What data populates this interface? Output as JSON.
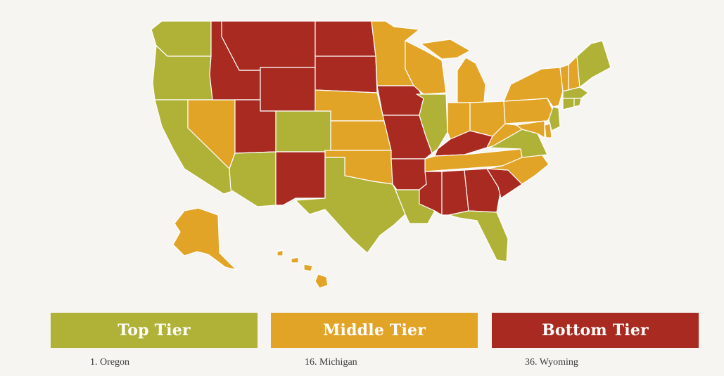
{
  "colors": {
    "top": "#afb236",
    "middle": "#e2a427",
    "bottom": "#a92a20",
    "border": "#ffffff",
    "background": "#f7f5f2"
  },
  "tiers": {
    "top": {
      "label": "Top Tier",
      "first": "1. Oregon"
    },
    "middle": {
      "label": "Middle Tier",
      "first": "16. Michigan"
    },
    "bottom": {
      "label": "Bottom Tier",
      "first": "36. Wyoming"
    }
  },
  "states": {
    "WA": "top",
    "OR": "top",
    "CA": "top",
    "NV": "middle",
    "ID": "bottom",
    "MT": "bottom",
    "WY": "bottom",
    "UT": "bottom",
    "AZ": "top",
    "CO": "top",
    "NM": "bottom",
    "ND": "bottom",
    "SD": "bottom",
    "NE": "middle",
    "KS": "middle",
    "OK": "middle",
    "TX": "top",
    "MN": "middle",
    "IA": "bottom",
    "MO": "bottom",
    "AR": "bottom",
    "LA": "top",
    "WI": "middle",
    "IL": "top",
    "MI": "middle",
    "IN": "middle",
    "OH": "middle",
    "KY": "bottom",
    "TN": "middle",
    "MS": "bottom",
    "AL": "bottom",
    "GA": "bottom",
    "FL": "top",
    "SC": "bottom",
    "NC": "middle",
    "VA": "top",
    "WV": "middle",
    "PA": "middle",
    "NY": "middle",
    "VT": "middle",
    "NH": "middle",
    "ME": "top",
    "MA": "top",
    "RI": "top",
    "CT": "top",
    "NJ": "top",
    "DE": "middle",
    "MD": "middle",
    "AK": "middle",
    "HI": "middle"
  }
}
